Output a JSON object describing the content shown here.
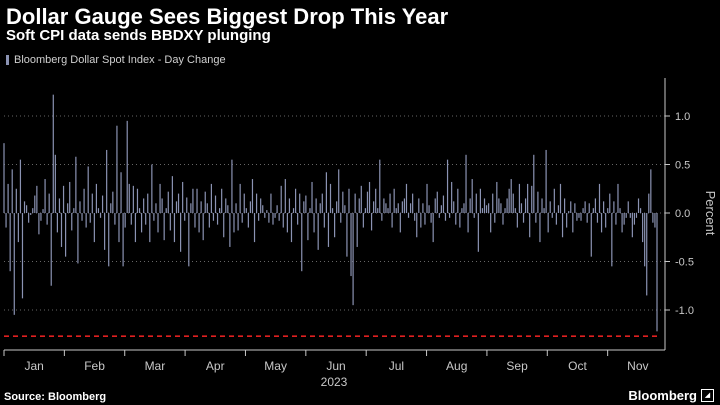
{
  "chart_data": {
    "type": "bar",
    "title": "Dollar Gauge Sees Biggest Drop This Year",
    "subtitle": "Soft CPI data sends BBDXY plunging",
    "legend": [
      {
        "name": "Bloomberg Dollar Spot Index - Day Change",
        "color": "#8b93b3"
      }
    ],
    "ylabel": "Percent",
    "ylim": [
      -1.4,
      1.4
    ],
    "yticks": [
      1.0,
      0.5,
      0.0,
      -0.5,
      -1.0
    ],
    "ytick_labels": [
      "1.0",
      "0.5",
      "0.0",
      "-0.5",
      "-1.0"
    ],
    "reference_line": {
      "value": -1.27,
      "style": "dashed",
      "color": "#e02020"
    },
    "grid": "horizontal-dotted",
    "xaxis": {
      "year_label": "2023",
      "month_labels": [
        "Jan",
        "Feb",
        "Mar",
        "Apr",
        "May",
        "Jun",
        "Jul",
        "Aug",
        "Sep",
        "Oct",
        "Nov"
      ]
    },
    "series": [
      {
        "name": "Bloomberg Dollar Spot Index - Day Change",
        "values": [
          0.72,
          -0.15,
          0.3,
          -0.6,
          0.45,
          -1.05,
          0.25,
          -0.3,
          0.55,
          -0.88,
          0.12,
          0.08,
          -0.1,
          -0.02,
          0.05,
          0.18,
          0.28,
          -0.22,
          -0.08,
          0.04,
          0.35,
          -0.12,
          0.2,
          -0.75,
          1.22,
          0.6,
          -0.2,
          0.15,
          -0.35,
          0.28,
          -0.45,
          0.1,
          0.32,
          -0.18,
          0.05,
          0.58,
          -0.52,
          0.12,
          -0.08,
          0.25,
          -0.15,
          0.48,
          -0.1,
          0.2,
          -0.3,
          0.3,
          0.05,
          -0.05,
          0.18,
          -0.38,
          0.65,
          -0.55,
          0.1,
          0.22,
          -0.12,
          0.9,
          -0.3,
          0.42,
          -0.55,
          -0.15,
          0.95,
          0.3,
          -0.12,
          0.28,
          -0.3,
          0.25,
          0.05,
          -0.2,
          0.15,
          -0.12,
          0.2,
          -0.3,
          0.5,
          -0.08,
          0.1,
          -0.2,
          0.3,
          0.15,
          -0.28,
          0.05,
          0.22,
          -0.18,
          0.38,
          -0.3,
          0.12,
          0.2,
          -0.4,
          0.32,
          -0.08,
          0.16,
          -0.55,
          0.1,
          0.25,
          -0.15,
          0.25,
          -0.2,
          0.12,
          -0.28,
          0.22,
          0.1,
          -0.15,
          0.3,
          -0.08,
          0.18,
          -0.12,
          0.05,
          0.25,
          -0.25,
          0.15,
          0.08,
          -0.35,
          0.55,
          -0.2,
          0.1,
          -0.18,
          0.3,
          -0.1,
          0.2,
          0.05,
          -0.15,
          0.12,
          0.35,
          -0.3,
          0.2,
          -0.08,
          0.15,
          0.08,
          -0.05,
          0.03,
          -0.1,
          0.2,
          -0.12,
          -0.05,
          0.08,
          -0.08,
          0.28,
          -0.15,
          0.35,
          -0.2,
          0.15,
          -0.3,
          0.05,
          0.25,
          -0.12,
          0.2,
          -0.6,
          0.12,
          0.18,
          -0.28,
          0.05,
          0.32,
          -0.2,
          0.15,
          -0.38,
          0.1,
          0.2,
          -0.15,
          0.42,
          -0.35,
          0.3,
          0.05,
          -0.25,
          0.12,
          0.45,
          -0.1,
          0.22,
          0.08,
          -0.45,
          0.25,
          -0.65,
          -0.95,
          0.2,
          -0.35,
          0.15,
          0.28,
          -0.15,
          0.05,
          0.22,
          0.32,
          -0.18,
          0.12,
          0.25,
          0.05,
          0.55,
          -0.08,
          0.15,
          0.1,
          0.05,
          0.2,
          -0.15,
          0.25,
          0.05,
          0.1,
          -0.2,
          0.12,
          0.15,
          0.3,
          -0.05,
          0.1,
          0.2,
          -0.08,
          -0.25,
          0.15,
          -0.15,
          0.1,
          -0.12,
          0.3,
          0.08,
          -0.1,
          -0.3,
          0.15,
          0.22,
          -0.05,
          0.08,
          0.18,
          -0.08,
          0.55,
          -0.05,
          0.32,
          0.12,
          -0.12,
          0.25,
          -0.15,
          0.05,
          0.1,
          0.6,
          -0.2,
          0.15,
          0.35,
          -0.05,
          0.2,
          -0.4,
          0.25,
          0.05,
          0.15,
          0.08,
          0.1,
          -0.2,
          0.2,
          -0.1,
          0.32,
          0.15,
          0.1,
          -0.12,
          0.05,
          0.15,
          0.25,
          0.35,
          0.2,
          0.05,
          -0.15,
          0.3,
          0.1,
          -0.1,
          0.15,
          0.3,
          -0.25,
          0.28,
          0.6,
          -0.1,
          0.22,
          -0.3,
          0.15,
          0.05,
          0.65,
          -0.2,
          0.12,
          -0.05,
          0.25,
          -0.12,
          0.08,
          0.3,
          -0.25,
          0.15,
          -0.15,
          0.02,
          0.12,
          -0.2,
          0.1,
          -0.08,
          -0.05,
          -0.08,
          0.05,
          0.12,
          -0.1,
          0.1,
          -0.45,
          0.05,
          0.15,
          -0.1,
          0.3,
          -0.2,
          0.12,
          -0.15,
          0.05,
          0.2,
          -0.55,
          0.12,
          -0.12,
          0.3,
          0.05,
          -0.2,
          -0.12,
          -0.05,
          0.12,
          -0.05,
          -0.25,
          -0.12,
          -0.05,
          0.15,
          0.05,
          -0.3,
          -0.55,
          -0.85,
          0.2,
          0.45,
          -0.1,
          -0.15,
          -1.22
        ]
      }
    ]
  },
  "footer": {
    "source": "Source: Bloomberg",
    "brand": "Bloomberg",
    "brand_badge": "◢"
  },
  "colors": {
    "bar": "#8b93b3",
    "reference_line": "#e02020",
    "axis_text": "#c8c8c8",
    "grid": "#666666"
  }
}
